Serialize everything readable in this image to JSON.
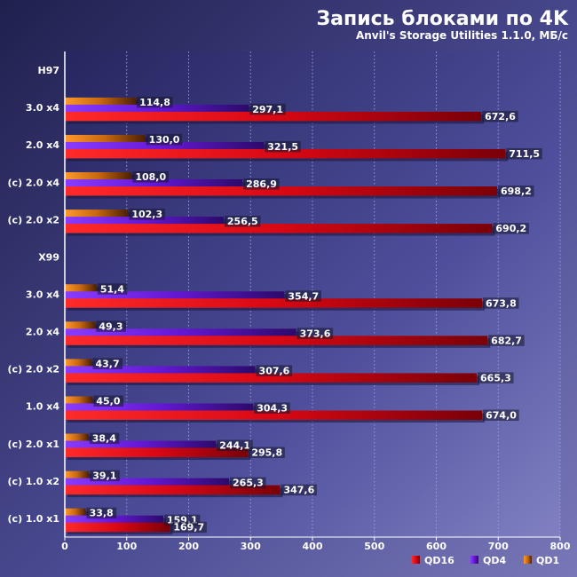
{
  "chart_data": {
    "type": "bar",
    "orientation": "horizontal",
    "title": "Запись блоками по 4K",
    "subtitle": "Anvil's Storage Utilities 1.1.0, МБ/с",
    "xlim": [
      0,
      800
    ],
    "xticks": [
      "0",
      "100",
      "200",
      "300",
      "400",
      "500",
      "600",
      "700",
      "800"
    ],
    "legend_position": "bottom-right",
    "series": [
      {
        "key": "qd1",
        "name": "QD1",
        "color": "#d07010"
      },
      {
        "key": "qd4",
        "name": "QD4",
        "color": "#6a1fd8"
      },
      {
        "key": "qd16",
        "name": "QD16",
        "color": "#e0101a"
      }
    ],
    "groups": [
      {
        "label": "H97",
        "header": true
      },
      {
        "label": "3.0 x4",
        "qd1": 114.8,
        "qd1_label": "114,8",
        "qd4": 297.1,
        "qd4_label": "297,1",
        "qd16": 672.6,
        "qd16_label": "672,6"
      },
      {
        "label": "2.0 x4",
        "qd1": 130.0,
        "qd1_label": "130,0",
        "qd4": 321.5,
        "qd4_label": "321,5",
        "qd16": 711.5,
        "qd16_label": "711,5"
      },
      {
        "label": "(c) 2.0 x4",
        "qd1": 108.0,
        "qd1_label": "108,0",
        "qd4": 286.9,
        "qd4_label": "286,9",
        "qd16": 698.2,
        "qd16_label": "698,2"
      },
      {
        "label": "(c) 2.0 x2",
        "qd1": 102.3,
        "qd1_label": "102,3",
        "qd4": 256.5,
        "qd4_label": "256,5",
        "qd16": 690.2,
        "qd16_label": "690,2"
      },
      {
        "label": "X99",
        "header": true
      },
      {
        "label": "3.0 x4",
        "qd1": 51.4,
        "qd1_label": "51,4",
        "qd4": 354.7,
        "qd4_label": "354,7",
        "qd16": 673.8,
        "qd16_label": "673,8"
      },
      {
        "label": "2.0 x4",
        "qd1": 49.3,
        "qd1_label": "49,3",
        "qd4": 373.6,
        "qd4_label": "373,6",
        "qd16": 682.7,
        "qd16_label": "682,7"
      },
      {
        "label": "(c) 2.0 x2",
        "qd1": 43.7,
        "qd1_label": "43,7",
        "qd4": 307.6,
        "qd4_label": "307,6",
        "qd16": 665.3,
        "qd16_label": "665,3"
      },
      {
        "label": "1.0 x4",
        "qd1": 45.0,
        "qd1_label": "45,0",
        "qd4": 304.3,
        "qd4_label": "304,3",
        "qd16": 674.0,
        "qd16_label": "674,0"
      },
      {
        "label": "(c) 2.0 x1",
        "qd1": 38.4,
        "qd1_label": "38,4",
        "qd4": 244.1,
        "qd4_label": "244,1",
        "qd16": 295.8,
        "qd16_label": "295,8"
      },
      {
        "label": "(c) 1.0 x2",
        "qd1": 39.1,
        "qd1_label": "39,1",
        "qd4": 265.3,
        "qd4_label": "265,3",
        "qd16": 347.6,
        "qd16_label": "347,6"
      },
      {
        "label": "(c) 1.0 x1",
        "qd1": 33.8,
        "qd1_label": "33,8",
        "qd4": 159.1,
        "qd4_label": "159,1",
        "qd16": 169.7,
        "qd16_label": "169,7"
      }
    ]
  }
}
